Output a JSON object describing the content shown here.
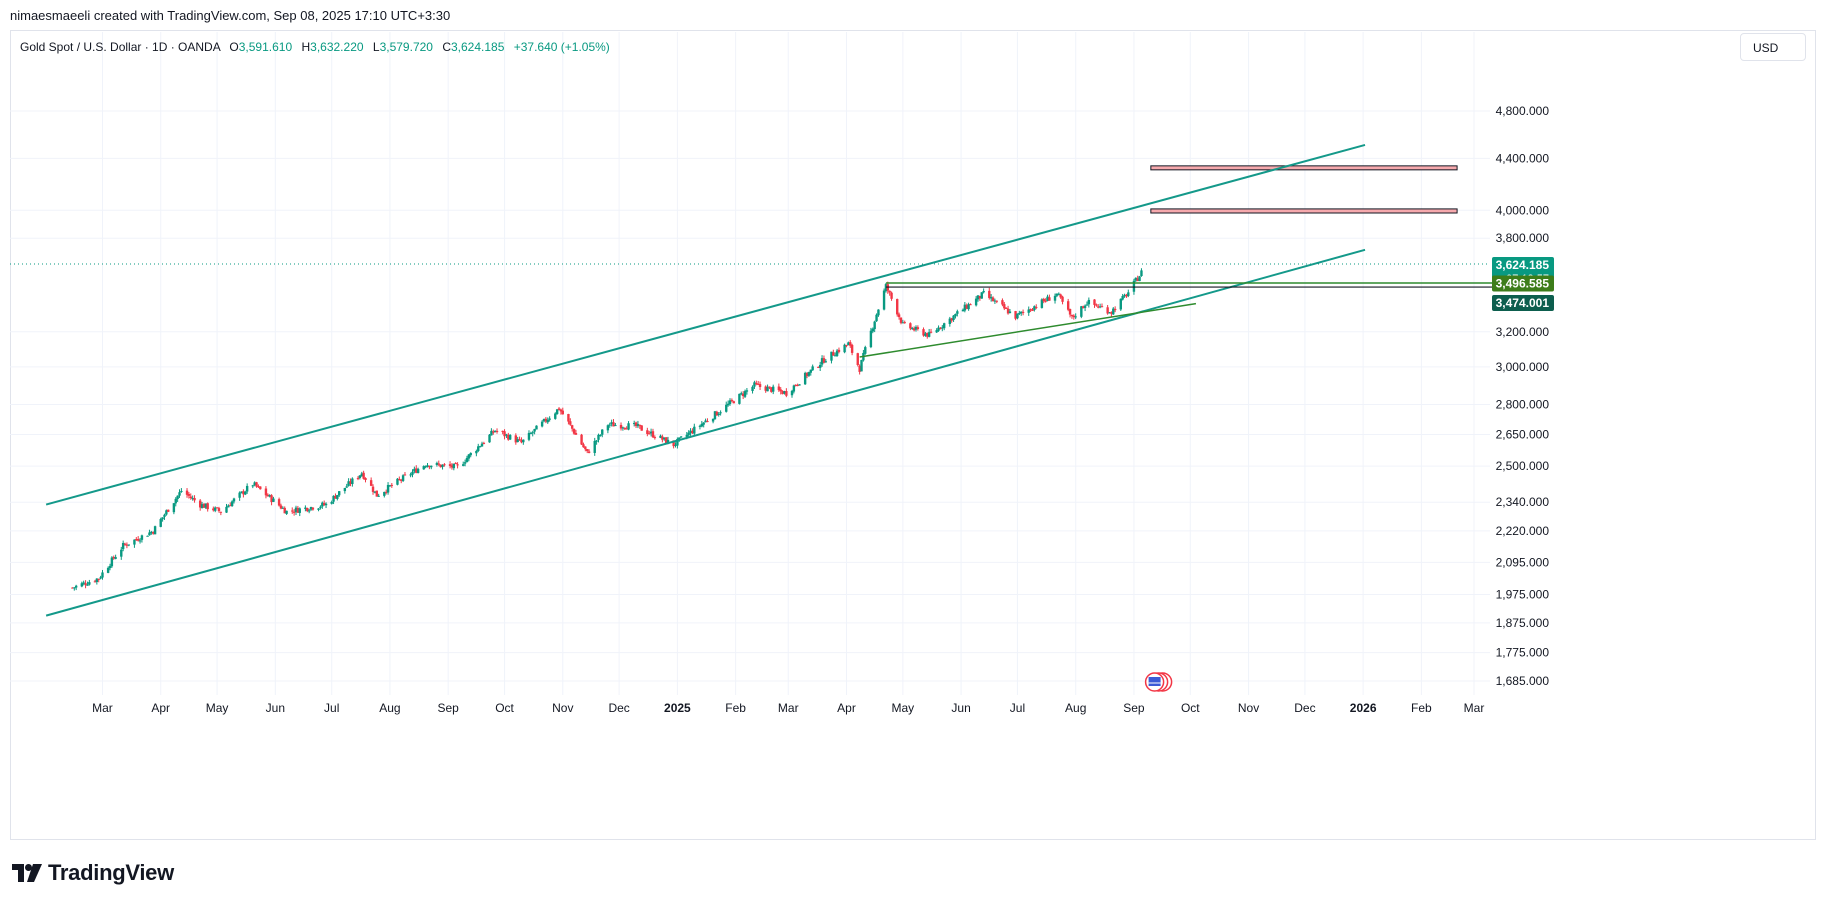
{
  "caption": "nimaesmaeeli created with TradingView.com, Sep 08, 2025 17:10 UTC+3:30",
  "legend": {
    "symbol": "Gold Spot / U.S. Dollar · 1D · OANDA",
    "o_label": "O",
    "o_value": "3,591.610",
    "h_label": "H",
    "h_value": "3,632.220",
    "l_label": "L",
    "l_value": "3,579.720",
    "c_label": "C",
    "c_value": "3,624.185",
    "change": "+37.640 (+1.05%)"
  },
  "currency": "USD",
  "brand": "TradingView",
  "colors": {
    "up": "#089981",
    "down": "#f23645",
    "channel": "#14998a",
    "triangle": "#2e8b2e",
    "zone_fill": "#f6a9ad",
    "grid": "#f0f3fa",
    "price_badge": "#089981",
    "level_green": "#3d7d1a",
    "level_dark": "#0d5e4e"
  },
  "chart_data": {
    "type": "candlestick",
    "y_scale": "log",
    "y_ticks": [
      "4,800.000",
      "4,400.000",
      "4,000.000",
      "3,800.000",
      "3,200.000",
      "3,000.000",
      "2,800.000",
      "2,650.000",
      "2,500.000",
      "2,340.000",
      "2,220.000",
      "2,095.000",
      "1,975.000",
      "1,875.000",
      "1,775.000",
      "1,685.000"
    ],
    "y_tick_values": [
      4800,
      4400,
      4000,
      3800,
      3200,
      3000,
      2800,
      2650,
      2500,
      2340,
      2220,
      2095,
      1975,
      1875,
      1775,
      1685
    ],
    "x_ticks": [
      {
        "label": "Mar",
        "date": "2024-03-01"
      },
      {
        "label": "Apr",
        "date": "2024-04-01"
      },
      {
        "label": "May",
        "date": "2024-05-01"
      },
      {
        "label": "Jun",
        "date": "2024-06-01"
      },
      {
        "label": "Jul",
        "date": "2024-07-01"
      },
      {
        "label": "Aug",
        "date": "2024-08-01"
      },
      {
        "label": "Sep",
        "date": "2024-09-01"
      },
      {
        "label": "Oct",
        "date": "2024-10-01"
      },
      {
        "label": "Nov",
        "date": "2024-11-01"
      },
      {
        "label": "Dec",
        "date": "2024-12-01"
      },
      {
        "label": "2025",
        "date": "2025-01-01",
        "bold": true
      },
      {
        "label": "Feb",
        "date": "2025-02-01"
      },
      {
        "label": "Mar",
        "date": "2025-03-01"
      },
      {
        "label": "Apr",
        "date": "2025-04-01"
      },
      {
        "label": "May",
        "date": "2025-05-01"
      },
      {
        "label": "Jun",
        "date": "2025-06-01"
      },
      {
        "label": "Jul",
        "date": "2025-07-01"
      },
      {
        "label": "Aug",
        "date": "2025-08-01"
      },
      {
        "label": "Sep",
        "date": "2025-09-01"
      },
      {
        "label": "Oct",
        "date": "2025-10-01"
      },
      {
        "label": "Nov",
        "date": "2025-11-01"
      },
      {
        "label": "Dec",
        "date": "2025-12-01"
      },
      {
        "label": "2026",
        "date": "2026-01-01",
        "bold": true
      },
      {
        "label": "Feb",
        "date": "2026-02-01"
      },
      {
        "label": "Mar",
        "date": "2026-03-01"
      }
    ],
    "anchors": [
      {
        "date": "2024-02-14",
        "price": 2000
      },
      {
        "date": "2024-02-28",
        "price": 2035
      },
      {
        "date": "2024-03-12",
        "price": 2160
      },
      {
        "date": "2024-03-28",
        "price": 2220
      },
      {
        "date": "2024-04-12",
        "price": 2390
      },
      {
        "date": "2024-04-22",
        "price": 2330
      },
      {
        "date": "2024-05-03",
        "price": 2300
      },
      {
        "date": "2024-05-20",
        "price": 2420
      },
      {
        "date": "2024-06-07",
        "price": 2300
      },
      {
        "date": "2024-06-28",
        "price": 2330
      },
      {
        "date": "2024-07-17",
        "price": 2470
      },
      {
        "date": "2024-07-25",
        "price": 2370
      },
      {
        "date": "2024-08-20",
        "price": 2510
      },
      {
        "date": "2024-09-06",
        "price": 2495
      },
      {
        "date": "2024-09-26",
        "price": 2670
      },
      {
        "date": "2024-10-10",
        "price": 2610
      },
      {
        "date": "2024-10-30",
        "price": 2780
      },
      {
        "date": "2024-11-14",
        "price": 2560
      },
      {
        "date": "2024-11-25",
        "price": 2700
      },
      {
        "date": "2024-12-10",
        "price": 2690
      },
      {
        "date": "2024-12-30",
        "price": 2600
      },
      {
        "date": "2025-01-24",
        "price": 2770
      },
      {
        "date": "2025-02-11",
        "price": 2900
      },
      {
        "date": "2025-02-28",
        "price": 2860
      },
      {
        "date": "2025-03-20",
        "price": 3040
      },
      {
        "date": "2025-04-02",
        "price": 3130
      },
      {
        "date": "2025-04-08",
        "price": 2990
      },
      {
        "date": "2025-04-22",
        "price": 3480
      },
      {
        "date": "2025-05-01",
        "price": 3240
      },
      {
        "date": "2025-05-15",
        "price": 3180
      },
      {
        "date": "2025-06-13",
        "price": 3430
      },
      {
        "date": "2025-06-30",
        "price": 3290
      },
      {
        "date": "2025-07-22",
        "price": 3430
      },
      {
        "date": "2025-07-30",
        "price": 3280
      },
      {
        "date": "2025-08-07",
        "price": 3380
      },
      {
        "date": "2025-08-20",
        "price": 3320
      },
      {
        "date": "2025-08-29",
        "price": 3440
      },
      {
        "date": "2025-09-08",
        "price": 3624
      }
    ],
    "channel": {
      "upper": [
        {
          "date": "2024-01-31",
          "price": 2330
        },
        {
          "date": "2026-01-02",
          "price": 4510
        }
      ],
      "lower": [
        {
          "date": "2024-01-31",
          "price": 1900
        },
        {
          "date": "2026-01-02",
          "price": 3720
        }
      ]
    },
    "triangle": {
      "top": [
        {
          "date": "2025-04-22",
          "price": 3500
        },
        {
          "date": "2026-04-01",
          "price": 3500
        }
      ],
      "bottom": [
        {
          "date": "2025-04-08",
          "price": 3055
        },
        {
          "date": "2025-10-04",
          "price": 3370
        }
      ]
    },
    "zones": [
      {
        "top": 4340,
        "bottom": 4310,
        "from": "2025-09-10",
        "to": "2026-02-20"
      },
      {
        "top": 4010,
        "bottom": 3980,
        "from": "2025-09-10",
        "to": "2026-02-20"
      }
    ],
    "last_price": 3624.185,
    "price_labels": [
      {
        "text": "3,624.185",
        "sub": "07:19:57",
        "price": 3624.185,
        "color": "#089981"
      },
      {
        "text": "3,496.585",
        "price": 3496.585,
        "color": "#3d7d1a"
      },
      {
        "text": "3,474.001",
        "price": 3474.001,
        "color": "#0d5e4e"
      }
    ]
  }
}
